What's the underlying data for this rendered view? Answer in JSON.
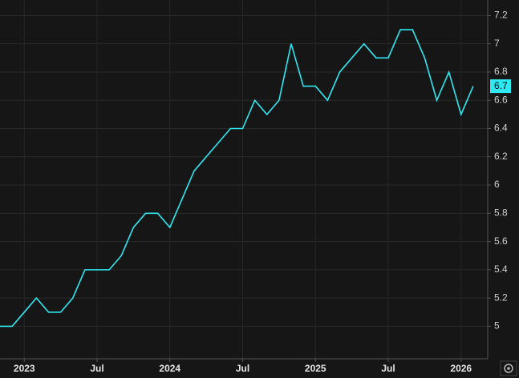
{
  "chart_data": {
    "type": "line",
    "x": [
      "2022-11",
      "2022-12",
      "2023-01",
      "2023-02",
      "2023-03",
      "2023-04",
      "2023-05",
      "2023-06",
      "2023-07",
      "2023-08",
      "2023-09",
      "2023-10",
      "2023-11",
      "2023-12",
      "2024-01",
      "2024-02",
      "2024-03",
      "2024-04",
      "2024-05",
      "2024-06",
      "2024-07",
      "2024-08",
      "2024-09",
      "2024-10",
      "2024-11",
      "2024-12",
      "2025-01",
      "2025-02",
      "2025-03",
      "2025-04",
      "2025-05",
      "2025-06",
      "2025-07",
      "2025-08",
      "2025-09",
      "2025-10",
      "2025-11",
      "2025-12",
      "2026-01",
      "2026-02"
    ],
    "series": [
      {
        "color": "#2ee8f2",
        "values": [
          5.0,
          5.0,
          5.1,
          5.2,
          5.1,
          5.1,
          5.2,
          5.4,
          5.4,
          5.4,
          5.5,
          5.7,
          5.8,
          5.8,
          5.7,
          5.9,
          6.1,
          6.2,
          6.3,
          6.4,
          6.4,
          6.6,
          6.5,
          6.6,
          7.0,
          6.7,
          6.7,
          6.6,
          6.8,
          6.9,
          7.0,
          6.9,
          6.9,
          7.1,
          7.1,
          6.9,
          6.6,
          6.8,
          6.5,
          6.7
        ]
      }
    ],
    "xlim": [
      "2022-11",
      "2026-03"
    ],
    "xticks": [
      {
        "value": "2023-01",
        "label": "2023"
      },
      {
        "value": "2023-07",
        "label": "Jul"
      },
      {
        "value": "2024-01",
        "label": "2024"
      },
      {
        "value": "2024-07",
        "label": "Jul"
      },
      {
        "value": "2025-01",
        "label": "2025"
      },
      {
        "value": "2025-07",
        "label": "Jul"
      },
      {
        "value": "2026-01",
        "label": "2026"
      }
    ],
    "ylim": [
      4.77,
      7.31
    ],
    "yticks": [
      5,
      5.2,
      5.4,
      5.6,
      5.8,
      6,
      6.2,
      6.4,
      6.6,
      6.8,
      7,
      7.2
    ],
    "grid": true
  }
}
